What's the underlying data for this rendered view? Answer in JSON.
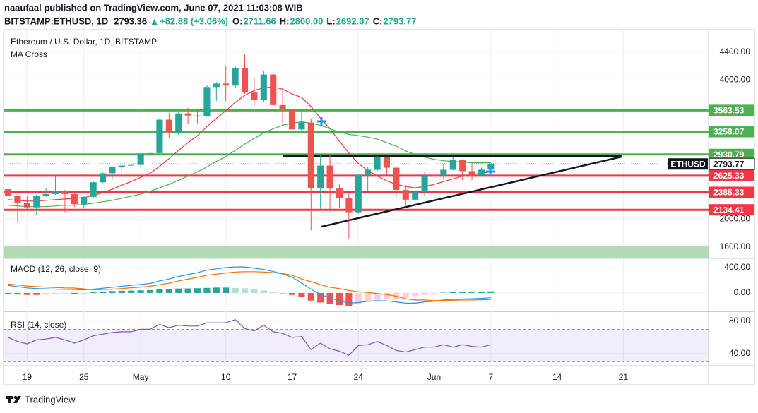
{
  "header": {
    "publisher": "naaufaal published on TradingView.com, June 07, 2021 11:03:08 WIB",
    "symbol": "BITSTAMP:ETHUSD, 1D",
    "last": "2793.36",
    "change": "+82.88 (+3.06%)",
    "ohlc": [
      {
        "label": "O:",
        "value": "2711.66"
      },
      {
        "label": "H:",
        "value": "2800.00"
      },
      {
        "label": "L:",
        "value": "2692.07"
      },
      {
        "label": "C:",
        "value": "2793.77"
      }
    ]
  },
  "footer": {
    "brand": "TradingView"
  },
  "chart_data": [
    {
      "type": "candlestick",
      "title": "Ethereum / U.S. Dollar, 1D, BITSTAMP",
      "subtitle": "MA Cross",
      "x": [
        0,
        1,
        2,
        3,
        4,
        5,
        6,
        7,
        8,
        9,
        10,
        11,
        12,
        13,
        14,
        15,
        16,
        17,
        18,
        19,
        20,
        21,
        22,
        23,
        24,
        25,
        26,
        27,
        28,
        29,
        30,
        31,
        32,
        33,
        34,
        35,
        36,
        37,
        38,
        39,
        40,
        41,
        42,
        43,
        44,
        45,
        46,
        47,
        48,
        49,
        50,
        51
      ],
      "open": [
        2430,
        2330,
        2235,
        2170,
        2330,
        2360,
        2400,
        2360,
        2215,
        2320,
        2530,
        2660,
        2750,
        2770,
        2780,
        2945,
        2950,
        3430,
        3250,
        3520,
        3490,
        3480,
        3900,
        3950,
        3920,
        4170,
        3820,
        3720,
        4080,
        3640,
        3580,
        3290,
        3390,
        2450,
        2770,
        2440,
        2300,
        2100,
        2640,
        2710,
        2890,
        2740,
        2420,
        2280,
        2390,
        2630,
        2630,
        2710,
        2855,
        2690,
        2630,
        2711.66
      ],
      "high": [
        2480,
        2360,
        2330,
        2350,
        2440,
        2640,
        2420,
        2370,
        2330,
        2540,
        2670,
        2760,
        2800,
        2800,
        2950,
        2990,
        3450,
        3530,
        3540,
        3600,
        3580,
        3930,
        3970,
        4200,
        4200,
        4380,
        4040,
        4130,
        4130,
        3850,
        3600,
        3560,
        3440,
        2940,
        2940,
        2500,
        2380,
        2650,
        2750,
        2910,
        2890,
        2760,
        2490,
        2450,
        2690,
        2710,
        2800,
        2890,
        2860,
        2800,
        2740,
        2800
      ],
      "low": [
        2300,
        1950,
        2150,
        2060,
        2320,
        2350,
        2100,
        2180,
        2160,
        2310,
        2520,
        2580,
        2660,
        2740,
        2760,
        2850,
        2940,
        3160,
        3210,
        3370,
        3380,
        3470,
        3700,
        3700,
        3880,
        3800,
        3630,
        3690,
        3630,
        3340,
        3130,
        3270,
        1840,
        2150,
        2150,
        2160,
        1720,
        2080,
        2400,
        2690,
        2640,
        2320,
        2180,
        2200,
        2340,
        2540,
        2580,
        2700,
        2560,
        2560,
        2610,
        2692.07
      ],
      "close": [
        2330,
        2235,
        2170,
        2330,
        2360,
        2400,
        2360,
        2215,
        2320,
        2530,
        2660,
        2750,
        2770,
        2780,
        2945,
        2950,
        3430,
        3250,
        3520,
        3490,
        3480,
        3900,
        3950,
        3920,
        4170,
        3820,
        3720,
        4080,
        3640,
        3580,
        3290,
        3390,
        2450,
        2770,
        2440,
        2300,
        2100,
        2640,
        2710,
        2890,
        2740,
        2420,
        2280,
        2390,
        2630,
        2630,
        2710,
        2855,
        2690,
        2630,
        2710,
        2793.77
      ],
      "up_color": "#26a69a",
      "down_color": "#ef5350",
      "series": [
        {
          "color": "#f23645",
          "values": [
            2280,
            2270,
            2260,
            2260,
            2270,
            2280,
            2290,
            2300,
            2310,
            2340,
            2380,
            2430,
            2490,
            2540,
            2600,
            2660,
            2760,
            2870,
            2990,
            3100,
            3200,
            3330,
            3450,
            3560,
            3680,
            3780,
            3850,
            3890,
            3900,
            3870,
            3800,
            3750,
            3620,
            3450,
            3300,
            3120,
            2950,
            2800,
            2700,
            2620,
            2550,
            2500,
            2470,
            2450,
            2470,
            2500,
            2540,
            2580,
            2620,
            2640,
            2660,
            2680
          ]
        },
        {
          "color": "#4caf50",
          "values": [
            2200,
            2190,
            2180,
            2180,
            2180,
            2190,
            2200,
            2200,
            2210,
            2230,
            2250,
            2270,
            2300,
            2330,
            2360,
            2400,
            2450,
            2500,
            2560,
            2620,
            2680,
            2750,
            2830,
            2900,
            2990,
            3080,
            3160,
            3240,
            3300,
            3350,
            3380,
            3400,
            3380,
            3350,
            3300,
            3250,
            3220,
            3200,
            3180,
            3150,
            3100,
            3050,
            2980,
            2930,
            2890,
            2860,
            2840,
            2830,
            2820,
            2810,
            2810,
            2810
          ]
        }
      ],
      "levels": [
        {
          "value": 3563.53,
          "color": "#4caf50"
        },
        {
          "value": 3258.07,
          "color": "#4caf50"
        },
        {
          "value": 2930.79,
          "color": "#4caf50"
        },
        {
          "value": 2625.33,
          "color": "#f23645"
        },
        {
          "value": 2385.33,
          "color": "#f23645"
        },
        {
          "value": 2134.41,
          "color": "#f23645"
        }
      ],
      "last_price": {
        "label": "ETHUSD",
        "value": 2793.77
      },
      "hline": {
        "x": [
          29,
          64.8
        ],
        "y": 2908
      },
      "trendline": {
        "x": [
          33.1,
          64.8
        ],
        "y": [
          1892,
          2897
        ]
      },
      "zone": [
        1446,
        1608
      ],
      "zone_color": "#a5d6a7",
      "xlim": [
        -0.49,
        74
      ],
      "ylim": [
        1446,
        4725
      ],
      "yticks": [
        {
          "value": 4400,
          "label": "4400.00"
        },
        {
          "value": 4000,
          "label": "4000.00"
        },
        {
          "value": 2000,
          "label": "2000.00"
        },
        {
          "value": 1600,
          "label": "1600.00"
        }
      ],
      "xticks": [
        {
          "value": 2,
          "label": "19"
        },
        {
          "value": 8,
          "label": "25"
        },
        {
          "value": 14,
          "label": "May"
        },
        {
          "value": 23,
          "label": "10"
        },
        {
          "value": 30,
          "label": "17"
        },
        {
          "value": 37,
          "label": "24"
        },
        {
          "value": 45,
          "label": "Jun"
        },
        {
          "value": 51,
          "label": "7"
        },
        {
          "value": 58,
          "label": "14"
        },
        {
          "value": 65,
          "label": "21"
        }
      ],
      "grid": true
    },
    {
      "type": "macd",
      "title": "MACD (12, 26, close, 9)",
      "x": [
        0,
        1,
        2,
        3,
        4,
        5,
        6,
        7,
        8,
        9,
        10,
        11,
        12,
        13,
        14,
        15,
        16,
        17,
        18,
        19,
        20,
        21,
        22,
        23,
        24,
        25,
        26,
        27,
        28,
        29,
        30,
        31,
        32,
        33,
        34,
        35,
        36,
        37,
        38,
        39,
        40,
        41,
        42,
        43,
        44,
        45,
        46,
        47,
        48,
        49,
        50,
        51
      ],
      "histogram": [
        -20,
        -25,
        -30,
        -30,
        -28,
        -25,
        -22,
        -22,
        -15,
        10,
        20,
        30,
        35,
        38,
        42,
        45,
        60,
        65,
        70,
        72,
        75,
        80,
        85,
        85,
        80,
        75,
        55,
        40,
        20,
        -5,
        -30,
        -60,
        -120,
        -150,
        -170,
        -190,
        -200,
        -170,
        -140,
        -110,
        -100,
        -90,
        -70,
        -50,
        -30,
        -10,
        5,
        15,
        15,
        20,
        22,
        25
      ],
      "histogram_colors": {
        "up_strong": "#26a69a",
        "up_weak": "#b2dfdb",
        "down_strong": "#ef5350",
        "down_weak": "#ffcdd2"
      },
      "series": [
        {
          "color": "#2196f3",
          "values": [
            120,
            100,
            80,
            70,
            65,
            60,
            58,
            55,
            50,
            60,
            75,
            90,
            105,
            120,
            135,
            150,
            190,
            220,
            260,
            290,
            320,
            360,
            380,
            400,
            410,
            410,
            390,
            370,
            340,
            300,
            250,
            160,
            60,
            -20,
            -80,
            -120,
            -160,
            -150,
            -130,
            -120,
            -125,
            -140,
            -160,
            -160,
            -140,
            -130,
            -110,
            -100,
            -95,
            -90,
            -85,
            -75
          ]
        },
        {
          "color": "#ff6d00",
          "values": [
            140,
            125,
            110,
            100,
            93,
            85,
            80,
            77,
            65,
            50,
            55,
            60,
            70,
            82,
            93,
            105,
            130,
            155,
            190,
            218,
            245,
            280,
            295,
            315,
            330,
            335,
            335,
            330,
            320,
            305,
            280,
            220,
            180,
            130,
            90,
            70,
            40,
            20,
            10,
            -10,
            -25,
            -50,
            -90,
            -110,
            -110,
            -120,
            -115,
            -115,
            -110,
            -110,
            -107,
            -100
          ]
        }
      ],
      "ylim": [
        -278,
        533
      ],
      "yticks": [
        {
          "value": 400,
          "label": "400.00"
        },
        {
          "value": 0,
          "label": "0.00"
        }
      ]
    },
    {
      "type": "rsi",
      "title": "RSI (14, close)",
      "x": [
        0,
        1,
        2,
        3,
        4,
        5,
        6,
        7,
        8,
        9,
        10,
        11,
        12,
        13,
        14,
        15,
        16,
        17,
        18,
        19,
        20,
        21,
        22,
        23,
        24,
        25,
        26,
        27,
        28,
        29,
        30,
        31,
        32,
        33,
        34,
        35,
        36,
        37,
        38,
        39,
        40,
        41,
        42,
        43,
        44,
        45,
        46,
        47,
        48,
        49,
        50,
        51
      ],
      "series": [
        {
          "color": "#7e57c2",
          "values": [
            60,
            55,
            52,
            57,
            58,
            60,
            57,
            53,
            57,
            62,
            64,
            66,
            67,
            67,
            70,
            70,
            76,
            72,
            75,
            74,
            74,
            78,
            78,
            78,
            82,
            71,
            68,
            75,
            67,
            65,
            60,
            61,
            45,
            53,
            46,
            43,
            38,
            50,
            51,
            55,
            50,
            44,
            42,
            45,
            48,
            48,
            51,
            48,
            51,
            49,
            48,
            51
          ]
        }
      ],
      "band": [
        30,
        70
      ],
      "band_color": "#7e57c2",
      "ylim": [
        26,
        90.4
      ],
      "yticks": [
        {
          "value": 80,
          "label": "80.00"
        },
        {
          "value": 40,
          "label": "40.00"
        }
      ]
    }
  ]
}
